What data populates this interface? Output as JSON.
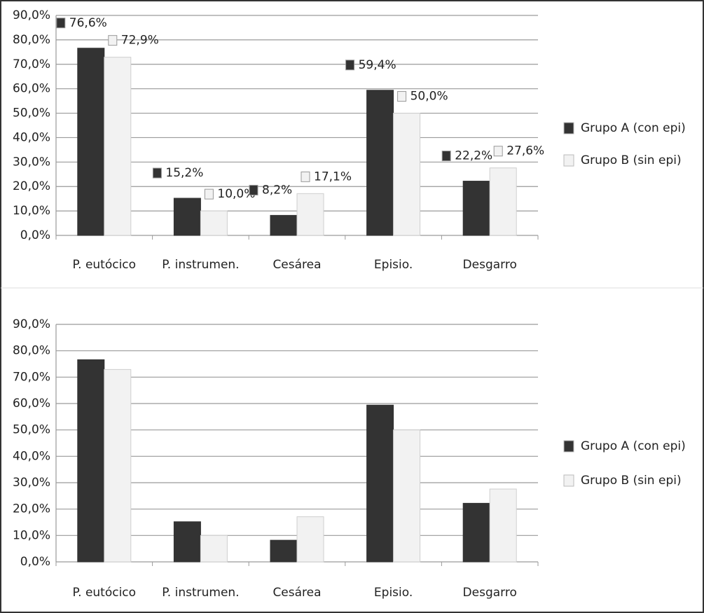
{
  "chart_data": [
    {
      "type": "bar",
      "categories": [
        "P. eutócico",
        "P. instrumen.",
        "Cesárea",
        "Episio.",
        "Desgarro"
      ],
      "series": [
        {
          "name": "Grupo A (con epi)",
          "color": "#333333",
          "values": [
            76.6,
            15.2,
            8.2,
            59.4,
            22.2
          ],
          "value_labels": [
            "76,6%",
            "15,2%",
            "8,2%",
            "59,4%",
            "22,2%"
          ]
        },
        {
          "name": "Grupo B (sin epi)",
          "color": "#f2f2f2",
          "values": [
            72.9,
            10.0,
            17.1,
            50.0,
            27.6
          ],
          "value_labels": [
            "72,9%",
            "10,0%",
            "17,1%",
            "50,0%",
            "27,6%"
          ]
        }
      ],
      "ylim": [
        0,
        90
      ],
      "yticks": [
        {
          "value": 0,
          "label": "0,0%"
        },
        {
          "value": 10,
          "label": "10,0%"
        },
        {
          "value": 20,
          "label": "20,0%"
        },
        {
          "value": 30,
          "label": "30,0%"
        },
        {
          "value": 40,
          "label": "40,0%"
        },
        {
          "value": 50,
          "label": "50,0%"
        },
        {
          "value": 60,
          "label": "60,0%"
        },
        {
          "value": 70,
          "label": "70,0%"
        },
        {
          "value": 80,
          "label": "80,0%"
        },
        {
          "value": 90,
          "label": "90,0%"
        }
      ],
      "grid": true,
      "legend": "right"
    },
    {
      "type": "bar",
      "categories": [
        "P. eutócico",
        "P. instrumen.",
        "Cesárea",
        "Episio.",
        "Desgarro"
      ],
      "series": [
        {
          "name": "Grupo A (con epi)",
          "color": "#333333",
          "values": [
            76.6,
            15.2,
            8.2,
            59.4,
            22.2
          ]
        },
        {
          "name": "Grupo B (sin epi)",
          "color": "#f2f2f2",
          "values": [
            72.9,
            10.0,
            17.1,
            50.0,
            27.6
          ]
        }
      ],
      "ylim": [
        0,
        90
      ],
      "yticks": [
        {
          "value": 0,
          "label": "0,0%"
        },
        {
          "value": 10,
          "label": "10,0%"
        },
        {
          "value": 20,
          "label": "20,0%"
        },
        {
          "value": 30,
          "label": "30,0%"
        },
        {
          "value": 40,
          "label": "40,0%"
        },
        {
          "value": 50,
          "label": "50,0%"
        },
        {
          "value": 60,
          "label": "60,0%"
        },
        {
          "value": 70,
          "label": "70,0%"
        },
        {
          "value": 80,
          "label": "80,0%"
        },
        {
          "value": 90,
          "label": "90,0%"
        }
      ],
      "grid": true,
      "legend": "right"
    }
  ]
}
